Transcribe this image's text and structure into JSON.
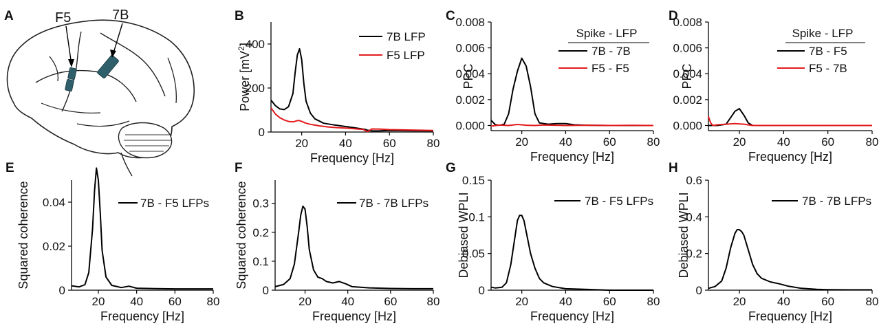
{
  "panel_letters": [
    "A",
    "B",
    "C",
    "D",
    "E",
    "F",
    "G",
    "H"
  ],
  "brain": {
    "labels": [
      "F5",
      "7B"
    ],
    "region_color": "#2f5f6a"
  },
  "colors": {
    "black": "#000000",
    "red": "#e41a1c"
  },
  "chart_data": [
    {
      "id": "B",
      "type": "line",
      "title": "",
      "xlabel": "Frequency [Hz]",
      "ylabel": "Power [mV²]",
      "ylabel_parts": [
        "Power [mV",
        "2",
        "]"
      ],
      "xlim": [
        6,
        80
      ],
      "ylim": [
        0,
        500
      ],
      "xticks": [
        20,
        40,
        60,
        80
      ],
      "yticks": [
        0,
        200,
        400
      ],
      "ytick_labels": [
        "0",
        "200",
        "400"
      ],
      "legend_header": "",
      "legend": [
        "7B LFP",
        "F5 LFP"
      ],
      "series": [
        {
          "name": "7B LFP",
          "color": "#000000",
          "points": [
            [
              6,
              145
            ],
            [
              8,
              120
            ],
            [
              10,
              105
            ],
            [
              12,
              102
            ],
            [
              14,
              115
            ],
            [
              16,
              175
            ],
            [
              17,
              270
            ],
            [
              18,
              350
            ],
            [
              19,
              378
            ],
            [
              20,
              330
            ],
            [
              21,
              220
            ],
            [
              22,
              140
            ],
            [
              24,
              85
            ],
            [
              26,
              60
            ],
            [
              30,
              40
            ],
            [
              35,
              32
            ],
            [
              40,
              25
            ],
            [
              45,
              18
            ],
            [
              49,
              12
            ],
            [
              50,
              8
            ],
            [
              52,
              5
            ],
            [
              55,
              5
            ],
            [
              60,
              7
            ],
            [
              70,
              6
            ],
            [
              80,
              5
            ]
          ]
        },
        {
          "name": "F5 LFP",
          "color": "#e41a1c",
          "points": [
            [
              6,
              110
            ],
            [
              8,
              82
            ],
            [
              10,
              65
            ],
            [
              12,
              55
            ],
            [
              14,
              48
            ],
            [
              16,
              46
            ],
            [
              18,
              52
            ],
            [
              19,
              52
            ],
            [
              20,
              48
            ],
            [
              22,
              40
            ],
            [
              24,
              35
            ],
            [
              28,
              28
            ],
            [
              32,
              23
            ],
            [
              36,
              20
            ],
            [
              40,
              18
            ],
            [
              44,
              15
            ],
            [
              48,
              12
            ],
            [
              50,
              2
            ],
            [
              52,
              14
            ],
            [
              56,
              13
            ],
            [
              60,
              11
            ],
            [
              70,
              9
            ],
            [
              80,
              7
            ]
          ]
        }
      ]
    },
    {
      "id": "C",
      "type": "line",
      "title": "",
      "xlabel": "Frequency [Hz]",
      "ylabel": "PPC",
      "xlim": [
        6,
        80
      ],
      "ylim": [
        -0.0004,
        0.008
      ],
      "xticks": [
        20,
        40,
        60,
        80
      ],
      "yticks": [
        0,
        0.002,
        0.004,
        0.006,
        0.008
      ],
      "ytick_labels": [
        "0.000",
        "0.002",
        "0.004",
        "0.006",
        "0.008"
      ],
      "legend_header": "Spike - LFP",
      "legend": [
        "7B - 7B",
        "F5 - F5"
      ],
      "series": [
        {
          "name": "7B - 7B",
          "color": "#000000",
          "points": [
            [
              6,
              0.0004
            ],
            [
              8,
              5e-05
            ],
            [
              10,
              2e-05
            ],
            [
              12,
              0.0001
            ],
            [
              14,
              0.0009
            ],
            [
              16,
              0.0028
            ],
            [
              18,
              0.0042
            ],
            [
              20,
              0.0052
            ],
            [
              22,
              0.0046
            ],
            [
              24,
              0.003
            ],
            [
              26,
              0.0009
            ],
            [
              28,
              0.0002
            ],
            [
              32,
              0.0001
            ],
            [
              36,
              0.00015
            ],
            [
              40,
              0.00015
            ],
            [
              44,
              5e-05
            ],
            [
              50,
              2e-05
            ],
            [
              60,
              0.0
            ],
            [
              70,
              0.0
            ],
            [
              80,
              0.0
            ]
          ]
        },
        {
          "name": "F5 - F5",
          "color": "#e41a1c",
          "points": [
            [
              6,
              -5e-05
            ],
            [
              10,
              3e-05
            ],
            [
              14,
              0.0
            ],
            [
              18,
              8e-05
            ],
            [
              22,
              2e-05
            ],
            [
              26,
              0.0
            ],
            [
              30,
              4e-05
            ],
            [
              40,
              0.0
            ],
            [
              50,
              2e-05
            ],
            [
              60,
              0.0
            ],
            [
              70,
              1e-05
            ],
            [
              80,
              0.0
            ]
          ]
        }
      ]
    },
    {
      "id": "D",
      "type": "line",
      "title": "",
      "xlabel": "Frequency [Hz]",
      "ylabel": "PPC",
      "xlim": [
        6,
        80
      ],
      "ylim": [
        -0.0004,
        0.008
      ],
      "xticks": [
        20,
        40,
        60,
        80
      ],
      "yticks": [
        0,
        0.002,
        0.004,
        0.006,
        0.008
      ],
      "ytick_labels": [
        "0.000",
        "0.002",
        "0.004",
        "0.006",
        "0.008"
      ],
      "legend_header": "Spike - LFP",
      "legend": [
        "7B - F5",
        "F5 - 7B"
      ],
      "series": [
        {
          "name": "7B - F5",
          "color": "#000000",
          "points": [
            [
              6,
              0.0
            ],
            [
              10,
              0.0
            ],
            [
              14,
              0.0001
            ],
            [
              16,
              0.0006
            ],
            [
              18,
              0.0011
            ],
            [
              20,
              0.0013
            ],
            [
              22,
              0.0008
            ],
            [
              24,
              0.0002
            ],
            [
              26,
              0.0
            ],
            [
              30,
              0.0
            ],
            [
              40,
              0.0
            ],
            [
              60,
              0.0
            ],
            [
              80,
              0.0
            ]
          ]
        },
        {
          "name": "F5 - 7B",
          "color": "#e41a1c",
          "points": [
            [
              6,
              0.0007
            ],
            [
              7,
              0.0002
            ],
            [
              8,
              0.0
            ],
            [
              10,
              5e-05
            ],
            [
              14,
              0.0001
            ],
            [
              18,
              0.00015
            ],
            [
              22,
              0.0001
            ],
            [
              26,
              0.0
            ],
            [
              30,
              0.0
            ],
            [
              40,
              0.0
            ],
            [
              60,
              0.0
            ],
            [
              80,
              0.0
            ]
          ]
        }
      ]
    },
    {
      "id": "E",
      "type": "line",
      "title": "",
      "xlabel": "Frequency [Hz]",
      "ylabel": "Squared coherence",
      "xlim": [
        6,
        80
      ],
      "ylim": [
        0,
        0.05
      ],
      "xticks": [
        20,
        40,
        60,
        80
      ],
      "yticks": [
        0,
        0.02,
        0.04
      ],
      "ytick_labels": [
        "0",
        "0.02",
        "0.04"
      ],
      "legend_header": "",
      "legend": [
        "7B - F5 LFPs"
      ],
      "series": [
        {
          "name": "7B - F5 LFPs",
          "color": "#000000",
          "points": [
            [
              6,
              0.002
            ],
            [
              10,
              0.0015
            ],
            [
              13,
              0.0025
            ],
            [
              15,
              0.008
            ],
            [
              17,
              0.028
            ],
            [
              18,
              0.045
            ],
            [
              19,
              0.0555
            ],
            [
              20,
              0.05
            ],
            [
              21,
              0.035
            ],
            [
              22,
              0.018
            ],
            [
              24,
              0.006
            ],
            [
              27,
              0.0022
            ],
            [
              32,
              0.0012
            ],
            [
              36,
              0.0018
            ],
            [
              40,
              0.0009
            ],
            [
              50,
              0.0007
            ],
            [
              60,
              0.0006
            ],
            [
              70,
              0.0006
            ],
            [
              80,
              0.0006
            ]
          ]
        }
      ]
    },
    {
      "id": "F",
      "type": "line",
      "title": "",
      "xlabel": "Frequency [Hz]",
      "ylabel": "Squared coherence",
      "xlim": [
        6,
        80
      ],
      "ylim": [
        0,
        0.38
      ],
      "xticks": [
        20,
        40,
        60,
        80
      ],
      "yticks": [
        0,
        0.1,
        0.2,
        0.3
      ],
      "ytick_labels": [
        "0",
        "0.1",
        "0.2",
        "0.3"
      ],
      "legend_header": "",
      "legend": [
        "7B - 7B LFPs"
      ],
      "series": [
        {
          "name": "7B - 7B LFPs",
          "color": "#000000",
          "points": [
            [
              6,
              0.012
            ],
            [
              10,
              0.02
            ],
            [
              13,
              0.04
            ],
            [
              15,
              0.09
            ],
            [
              17,
              0.2
            ],
            [
              18,
              0.26
            ],
            [
              19,
              0.29
            ],
            [
              20,
              0.28
            ],
            [
              21,
              0.22
            ],
            [
              22,
              0.14
            ],
            [
              24,
              0.07
            ],
            [
              26,
              0.045
            ],
            [
              28,
              0.04
            ],
            [
              30,
              0.03
            ],
            [
              33,
              0.025
            ],
            [
              36,
              0.03
            ],
            [
              39,
              0.022
            ],
            [
              42,
              0.012
            ],
            [
              50,
              0.008
            ],
            [
              60,
              0.006
            ],
            [
              70,
              0.005
            ],
            [
              80,
              0.005
            ]
          ]
        }
      ]
    },
    {
      "id": "G",
      "type": "line",
      "title": "",
      "xlabel": "Frequency [Hz]",
      "ylabel": "Debiased WPLI",
      "xlim": [
        6,
        80
      ],
      "ylim": [
        0,
        0.15
      ],
      "xticks": [
        20,
        40,
        60,
        80
      ],
      "yticks": [
        0,
        0.05,
        0.1,
        0.15
      ],
      "ytick_labels": [
        "0",
        "0.05",
        "0.1",
        "0.15"
      ],
      "legend_header": "",
      "legend": [
        "7B - F5 LFPs"
      ],
      "series": [
        {
          "name": "7B - F5 LFPs",
          "color": "#000000",
          "points": [
            [
              6,
              0.004
            ],
            [
              8,
              0.003
            ],
            [
              11,
              0.004
            ],
            [
              13,
              0.01
            ],
            [
              15,
              0.035
            ],
            [
              17,
              0.075
            ],
            [
              18,
              0.095
            ],
            [
              19,
              0.102
            ],
            [
              20,
              0.102
            ],
            [
              21,
              0.095
            ],
            [
              22,
              0.08
            ],
            [
              24,
              0.05
            ],
            [
              26,
              0.03
            ],
            [
              28,
              0.016
            ],
            [
              30,
              0.01
            ],
            [
              34,
              0.005
            ],
            [
              40,
              0.002
            ],
            [
              50,
              0.001
            ],
            [
              60,
              0.0
            ],
            [
              70,
              0.0
            ],
            [
              80,
              0.0
            ]
          ]
        }
      ]
    },
    {
      "id": "H",
      "type": "line",
      "title": "",
      "xlabel": "Frequency [Hz]",
      "ylabel": "Debiased WPLI",
      "xlim": [
        6,
        80
      ],
      "ylim": [
        0,
        0.6
      ],
      "xticks": [
        20,
        40,
        60,
        80
      ],
      "yticks": [
        0,
        0.2,
        0.4,
        0.6
      ],
      "ytick_labels": [
        "0",
        "0.2",
        "0.4",
        "0.6"
      ],
      "legend_header": "",
      "legend": [
        "7B - 7B LFPs"
      ],
      "series": [
        {
          "name": "7B - 7B LFPs",
          "color": "#000000",
          "points": [
            [
              6,
              0.01
            ],
            [
              9,
              0.02
            ],
            [
              12,
              0.05
            ],
            [
              14,
              0.12
            ],
            [
              16,
              0.23
            ],
            [
              18,
              0.31
            ],
            [
              19,
              0.33
            ],
            [
              20,
              0.33
            ],
            [
              21,
              0.32
            ],
            [
              22,
              0.3
            ],
            [
              24,
              0.22
            ],
            [
              26,
              0.14
            ],
            [
              28,
              0.09
            ],
            [
              30,
              0.065
            ],
            [
              34,
              0.045
            ],
            [
              38,
              0.035
            ],
            [
              42,
              0.022
            ],
            [
              48,
              0.01
            ],
            [
              55,
              0.005
            ],
            [
              60,
              0.003
            ],
            [
              70,
              0.002
            ],
            [
              80,
              0.002
            ]
          ]
        }
      ]
    }
  ]
}
